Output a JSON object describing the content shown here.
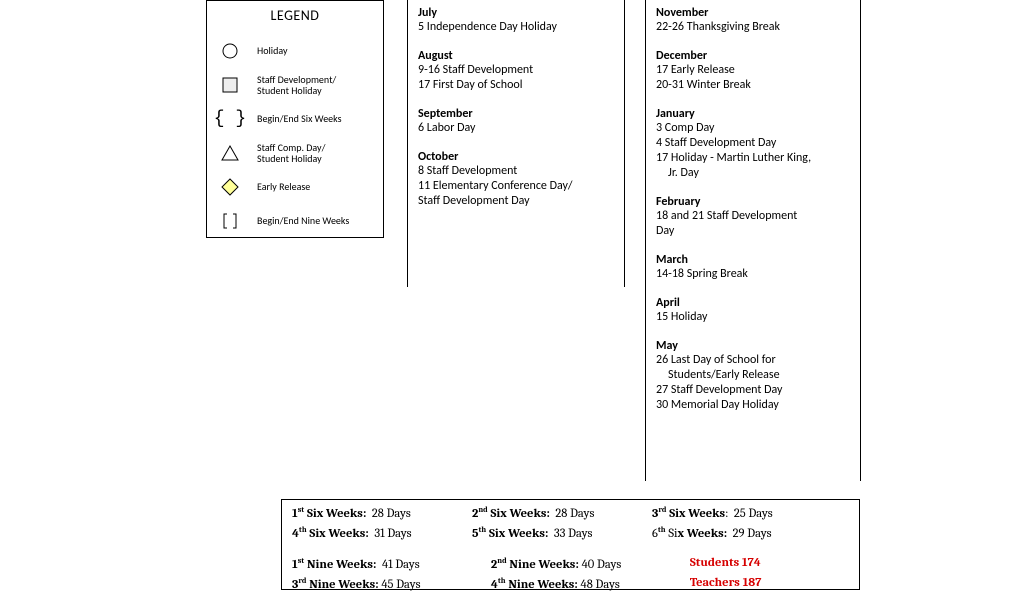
{
  "legend": {
    "title": "LEGEND",
    "items": [
      {
        "label": "Holiday",
        "icon": "circle"
      },
      {
        "label": "Staff Development/\nStudent Holiday",
        "icon": "square"
      },
      {
        "label": "Begin/End Six Weeks",
        "icon": "braces"
      },
      {
        "label": "Staff Comp. Day/\nStudent Holiday",
        "icon": "triangle"
      },
      {
        "label": "Early Release",
        "icon": "diamond"
      },
      {
        "label": "Begin/End Nine Weeks",
        "icon": "brackets"
      }
    ],
    "iconStyles": {
      "stroke": "#000000",
      "fillWhite": "#ffffff",
      "fillYellow": "#ffff99"
    }
  },
  "columns": [
    {
      "months": [
        {
          "name": "July",
          "events": [
            "5 Independence Day Holiday"
          ]
        },
        {
          "name": "August",
          "events": [
            "9-16  Staff Development",
            "17 First Day of School"
          ]
        },
        {
          "name": "September",
          "events": [
            "6  Labor Day"
          ]
        },
        {
          "name": "October",
          "events": [
            "8 Staff Development",
            "11 Elementary Conference Day/",
            "Staff Development Day"
          ]
        }
      ]
    },
    {
      "months": [
        {
          "name": "November",
          "events": [
            "22-26 Thanksgiving Break"
          ]
        },
        {
          "name": "December",
          "events": [
            "17 Early Release",
            "20-31 Winter Break"
          ]
        },
        {
          "name": "January",
          "events": [
            "3 Comp Day",
            "4 Staff Development Day",
            "17 Holiday - Martin Luther King,",
            "    Jr. Day"
          ]
        },
        {
          "name": "February",
          "events": [
            "18 and 21 Staff Development",
            "Day"
          ]
        },
        {
          "name": "March",
          "events": [
            "14-18 Spring Break"
          ]
        },
        {
          "name": "April",
          "events": [
            "15 Holiday"
          ]
        },
        {
          "name": "May",
          "events": [
            "26 Last Day of School for",
            "     Students/Early Release",
            "27 Staff Development Day",
            "30 Memorial Day Holiday"
          ]
        }
      ]
    }
  ],
  "bottom": {
    "sixWeeks": [
      {
        "ord": "1",
        "sup": "st",
        "days": "28 Days"
      },
      {
        "ord": "2",
        "sup": "nd",
        "days": "28 Days"
      },
      {
        "ord": "3",
        "sup": "rd",
        "days": "25 Days"
      },
      {
        "ord": "4",
        "sup": "th",
        "days": "31 Days"
      },
      {
        "ord": "5",
        "sup": "th",
        "days": "33 Days"
      },
      {
        "ord": "6",
        "sup": "th",
        "days": "29 Days"
      }
    ],
    "nineWeeks": [
      {
        "ord": "1",
        "sup": "st",
        "days": "41 Days"
      },
      {
        "ord": "2",
        "sup": "nd",
        "days": "40 Days"
      },
      {
        "ord": "3",
        "sup": "rd",
        "days": "45 Days"
      },
      {
        "ord": "4",
        "sup": "th",
        "days": "48 Days"
      }
    ],
    "sixLabel": " Six Weeks:",
    "nineLabel": " Nine Weeks:",
    "students": {
      "label": "Students ",
      "value": "174"
    },
    "teachers": {
      "label": "Teachers ",
      "value": "187"
    }
  }
}
